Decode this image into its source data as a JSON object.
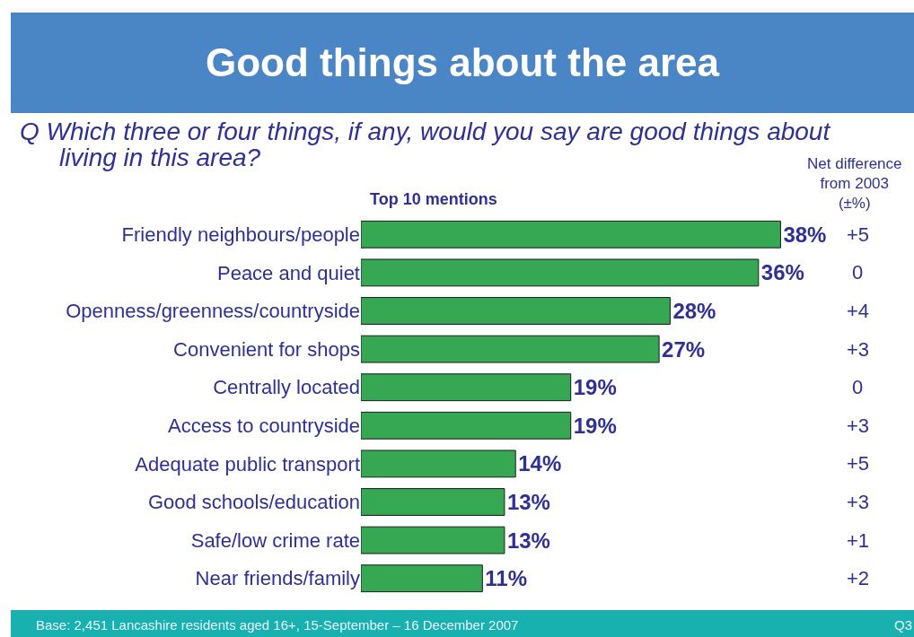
{
  "chart_data": {
    "type": "bar",
    "orientation": "horizontal",
    "title": "Good things about the area",
    "subtitle": "Q  Which three or four things, if any, would you say are good things about living in this area?",
    "categories": [
      "Friendly neighbours/people",
      "Peace and quiet",
      "Openness/greenness/countryside",
      "Convenient for shops",
      "Centrally located",
      "Access to countryside",
      "Adequate public transport",
      "Good schools/education",
      "Safe/low crime rate",
      "Near friends/family"
    ],
    "values": [
      38,
      36,
      28,
      27,
      19,
      19,
      14,
      13,
      13,
      11
    ],
    "value_labels": [
      "38%",
      "36%",
      "28%",
      "27%",
      "19%",
      "19%",
      "14%",
      "13%",
      "13%",
      "11%"
    ],
    "color": "#36a853",
    "tick_labels": "y",
    "grid": false,
    "legend": false,
    "annotations": [
      "Top 10 mentions",
      "Net difference from 2003 (±%)",
      "+5",
      "0",
      "+4",
      "+3",
      "0",
      "+3",
      "+5",
      "+3",
      "+1",
      "+2",
      "Base: 2,451 Lancashire residents aged 16+, 15-September – 16 December 2007",
      "Q3"
    ]
  }
}
